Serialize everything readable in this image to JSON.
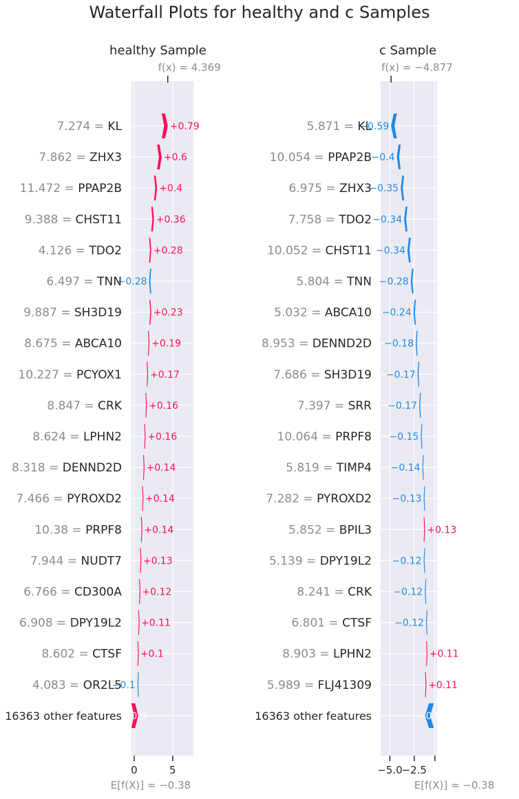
{
  "suptitle": "Waterfall Plots for healthy and c Samples",
  "chart_data": [
    {
      "type": "waterfall",
      "title": "healthy Sample",
      "fx_label": "f(x) = 4.369",
      "fx_value": 4.369,
      "base_label": "E[f(X)] = −0.38",
      "base_value": -0.38,
      "xlim": [
        -0.35,
        7.7
      ],
      "xticks": [
        0,
        5
      ],
      "xtick_labels": [
        "0",
        "5"
      ],
      "grid": true,
      "colors": {
        "positive": "#ff0d57",
        "negative": "#1e88e5",
        "background": "#eaeaf2"
      },
      "features": [
        {
          "value": "7.274",
          "name": "KL",
          "shap": 0.79,
          "label": "+0.79"
        },
        {
          "value": "7.862",
          "name": "ZHX3",
          "shap": 0.6,
          "label": "+0.6"
        },
        {
          "value": "11.472",
          "name": "PPAP2B",
          "shap": 0.4,
          "label": "+0.4"
        },
        {
          "value": "9.388",
          "name": "CHST11",
          "shap": 0.36,
          "label": "+0.36"
        },
        {
          "value": "4.126",
          "name": "TDO2",
          "shap": 0.28,
          "label": "+0.28"
        },
        {
          "value": "6.497",
          "name": "TNN",
          "shap": -0.28,
          "label": "−0.28"
        },
        {
          "value": "9.887",
          "name": "SH3D19",
          "shap": 0.23,
          "label": "+0.23"
        },
        {
          "value": "8.675",
          "name": "ABCA10",
          "shap": 0.19,
          "label": "+0.19"
        },
        {
          "value": "10.227",
          "name": "PCYOX1",
          "shap": 0.17,
          "label": "+0.17"
        },
        {
          "value": "8.847",
          "name": "CRK",
          "shap": 0.16,
          "label": "+0.16"
        },
        {
          "value": "8.624",
          "name": "LPHN2",
          "shap": 0.16,
          "label": "+0.16"
        },
        {
          "value": "8.318",
          "name": "DENND2D",
          "shap": 0.14,
          "label": "+0.14"
        },
        {
          "value": "7.466",
          "name": "PYROXD2",
          "shap": 0.14,
          "label": "+0.14"
        },
        {
          "value": "10.38",
          "name": "PRPF8",
          "shap": 0.14,
          "label": "+0.14"
        },
        {
          "value": "7.944",
          "name": "NUDT7",
          "shap": 0.13,
          "label": "+0.13"
        },
        {
          "value": "6.766",
          "name": "CD300A",
          "shap": 0.12,
          "label": "+0.12"
        },
        {
          "value": "6.908",
          "name": "DPY19L2",
          "shap": 0.11,
          "label": "+0.11"
        },
        {
          "value": "8.602",
          "name": "CTSF",
          "shap": 0.1,
          "label": "+0.1"
        },
        {
          "value": "4.083",
          "name": "OR2L5",
          "shap": -0.1,
          "label": "−0.1"
        },
        {
          "value": "",
          "name": "16363 other features",
          "shap": 0.9,
          "label": "+0.9"
        }
      ]
    },
    {
      "type": "waterfall",
      "title": "c Sample",
      "fx_label": "f(x) = −4.877",
      "fx_value": -4.877,
      "base_label": "E[f(X)] = −0.38",
      "base_value": -0.38,
      "xlim": [
        -5.95,
        -0.15
      ],
      "xticks": [
        -5.0,
        -2.5,
        -0.38
      ],
      "xtick_labels": [
        "−5.0",
        "−2.5",
        ""
      ],
      "grid": true,
      "colors": {
        "positive": "#ff0d57",
        "negative": "#1e88e5",
        "background": "#eaeaf2"
      },
      "features": [
        {
          "value": "5.871",
          "name": "KL",
          "shap": -0.59,
          "label": "−0.59"
        },
        {
          "value": "10.054",
          "name": "PPAP2B",
          "shap": -0.4,
          "label": "−0.4"
        },
        {
          "value": "6.975",
          "name": "ZHX3",
          "shap": -0.35,
          "label": "−0.35"
        },
        {
          "value": "7.758",
          "name": "TDO2",
          "shap": -0.34,
          "label": "−0.34"
        },
        {
          "value": "10.052",
          "name": "CHST11",
          "shap": -0.34,
          "label": "−0.34"
        },
        {
          "value": "5.804",
          "name": "TNN",
          "shap": -0.28,
          "label": "−0.28"
        },
        {
          "value": "5.032",
          "name": "ABCA10",
          "shap": -0.24,
          "label": "−0.24"
        },
        {
          "value": "8.953",
          "name": "DENND2D",
          "shap": -0.18,
          "label": "−0.18"
        },
        {
          "value": "7.686",
          "name": "SH3D19",
          "shap": -0.17,
          "label": "−0.17"
        },
        {
          "value": "7.397",
          "name": "SRR",
          "shap": -0.17,
          "label": "−0.17"
        },
        {
          "value": "10.064",
          "name": "PRPF8",
          "shap": -0.15,
          "label": "−0.15"
        },
        {
          "value": "5.819",
          "name": "TIMP4",
          "shap": -0.14,
          "label": "−0.14"
        },
        {
          "value": "7.282",
          "name": "PYROXD2",
          "shap": -0.13,
          "label": "−0.13"
        },
        {
          "value": "5.852",
          "name": "BPIL3",
          "shap": 0.13,
          "label": "+0.13"
        },
        {
          "value": "5.139",
          "name": "DPY19L2",
          "shap": -0.12,
          "label": "−0.12"
        },
        {
          "value": "8.241",
          "name": "CRK",
          "shap": -0.12,
          "label": "−0.12"
        },
        {
          "value": "6.801",
          "name": "CTSF",
          "shap": -0.12,
          "label": "−0.12"
        },
        {
          "value": "8.903",
          "name": "LPHN2",
          "shap": 0.11,
          "label": "+0.11"
        },
        {
          "value": "5.989",
          "name": "FLJ41309",
          "shap": 0.11,
          "label": "+0.11"
        },
        {
          "value": "",
          "name": "16363 other features",
          "shap": -0.9,
          "label": "−0.9"
        }
      ]
    }
  ]
}
